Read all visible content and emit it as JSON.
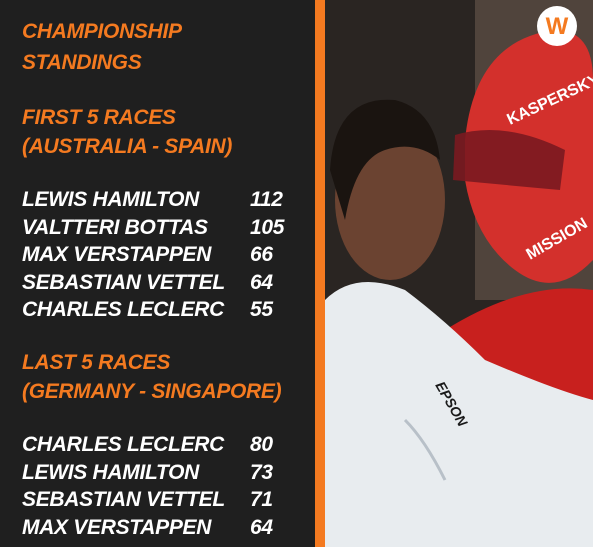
{
  "title": [
    "CHAMPIONSHIP",
    "STANDINGS"
  ],
  "sections": [
    {
      "heading": [
        "FIRST 5 RACES",
        "(AUSTRALIA - SPAIN)"
      ],
      "rows": [
        [
          "LEWIS HAMILTON",
          112
        ],
        [
          "VALTTERI BOTTAS",
          105
        ],
        [
          "MAX VERSTAPPEN",
          66
        ],
        [
          "SEBASTIAN VETTEL",
          64
        ],
        [
          "CHARLES LECLERC",
          55
        ]
      ]
    },
    {
      "heading": [
        "LAST 5 RACES",
        "(GERMANY - SINGAPORE)"
      ],
      "rows": [
        [
          "CHARLES LECLERC",
          80
        ],
        [
          "LEWIS HAMILTON",
          73
        ],
        [
          "SEBASTIAN VETTEL",
          71
        ],
        [
          "MAX VERSTAPPEN",
          64
        ]
      ]
    }
  ]
}
